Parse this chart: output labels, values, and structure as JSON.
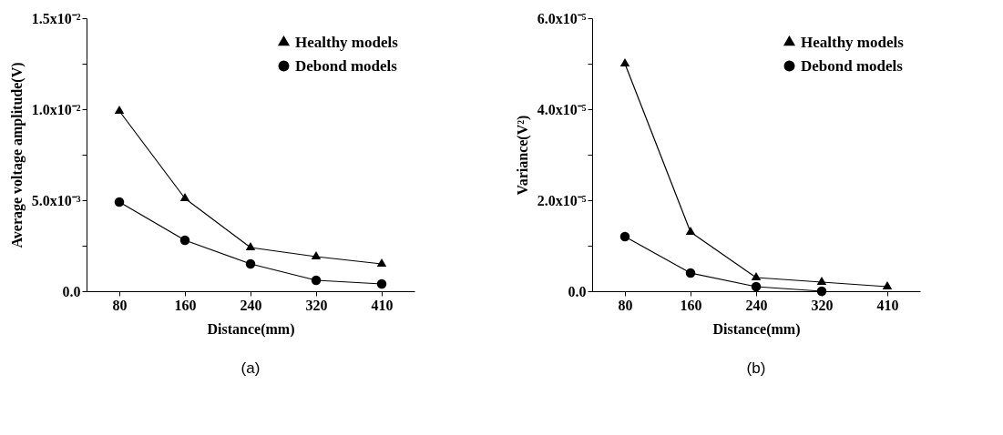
{
  "chart_data": [
    {
      "type": "line",
      "xlabel": "Distance(mm)",
      "ylabel": "Average voltage amplitude(V)",
      "annotations": [
        "(a)"
      ],
      "categories": [
        "80",
        "160",
        "240",
        "320",
        "410"
      ],
      "series": [
        {
          "name": "Healthy models",
          "color": "#000000",
          "marker": "triangle",
          "values": [
            0.0099,
            0.0051,
            0.0024,
            0.0019,
            0.0015
          ]
        },
        {
          "name": "Debond models",
          "color": "#000000",
          "marker": "circle",
          "values": [
            0.0049,
            0.0028,
            0.0015,
            0.0006,
            0.0004
          ]
        }
      ],
      "ylim": [
        0,
        0.015
      ],
      "yticks": [
        {
          "value": 0,
          "label": "0.0"
        },
        {
          "value": 0.0025,
          "label": null
        },
        {
          "value": 0.005,
          "label": "5.0x10⁻³"
        },
        {
          "value": 0.0075,
          "label": null
        },
        {
          "value": 0.01,
          "label": "1.0x10⁻²"
        },
        {
          "value": 0.0125,
          "label": null
        },
        {
          "value": 0.015,
          "label": "1.5x10⁻²"
        }
      ],
      "grid": false,
      "legend": "top right",
      "line_style": "solid"
    },
    {
      "type": "line",
      "xlabel": "Distance(mm)",
      "ylabel": "Variance(V²)",
      "annotations": [
        "(b)"
      ],
      "categories": [
        "80",
        "160",
        "240",
        "320",
        "410"
      ],
      "series": [
        {
          "name": "Healthy models",
          "color": "#000000",
          "marker": "triangle",
          "values": [
            5e-05,
            1.3e-05,
            3e-06,
            2e-06,
            1e-06
          ]
        },
        {
          "name": "Debond models",
          "color": "#000000",
          "marker": "circle",
          "values": [
            1.2e-05,
            4e-06,
            1e-06,
            0,
            null
          ]
        }
      ],
      "ylim": [
        0,
        6e-05
      ],
      "yticks": [
        {
          "value": 0,
          "label": "0.0"
        },
        {
          "value": 1e-05,
          "label": null
        },
        {
          "value": 2e-05,
          "label": "2.0x10⁻⁵"
        },
        {
          "value": 3e-05,
          "label": null
        },
        {
          "value": 4e-05,
          "label": "4.0x10⁻⁵"
        },
        {
          "value": 5e-05,
          "label": null
        },
        {
          "value": 6e-05,
          "label": "6.0x10⁻⁵"
        }
      ],
      "grid": false,
      "legend": "top right",
      "line_style": "solid"
    }
  ]
}
